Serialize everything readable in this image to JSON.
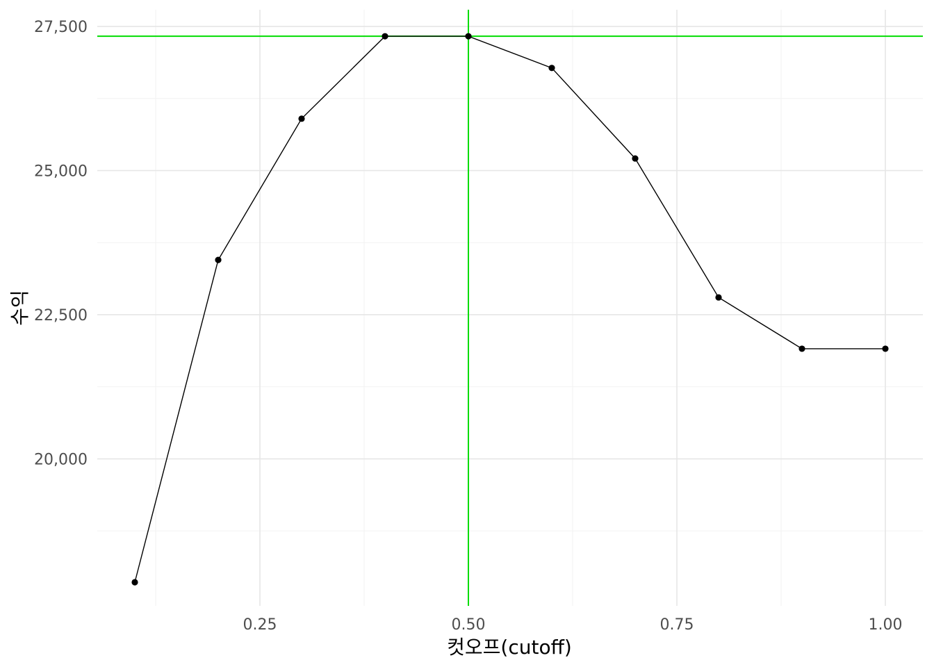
{
  "chart_data": {
    "type": "line",
    "title": "",
    "xlabel": "컷오프(cutoff)",
    "ylabel": "수익",
    "x": [
      0.1,
      0.2,
      0.3,
      0.4,
      0.5,
      0.6,
      0.7,
      0.8,
      0.9,
      1.0
    ],
    "series": [
      {
        "values": [
          17860,
          23450,
          25900,
          27330,
          27330,
          26780,
          25210,
          22800,
          21910,
          21910
        ]
      }
    ],
    "xlim": [
      0.055,
      1.045
    ],
    "ylim": [
      17450,
      27790
    ],
    "x_ticks": [
      {
        "value": 0.25,
        "label": "0.25"
      },
      {
        "value": 0.5,
        "label": "0.50"
      },
      {
        "value": 0.75,
        "label": "0.75"
      },
      {
        "value": 1.0,
        "label": "1.00"
      }
    ],
    "y_ticks": [
      {
        "value": 20000,
        "label": "20,000"
      },
      {
        "value": 22500,
        "label": "22,500"
      },
      {
        "value": 25000,
        "label": "25,000"
      },
      {
        "value": 27500,
        "label": "27,500"
      }
    ],
    "x_minor_ticks": [
      0.125,
      0.375,
      0.625,
      0.875
    ],
    "y_minor_ticks": [
      18750,
      21250,
      23750,
      26250
    ],
    "reference_lines": {
      "vertical_x": 0.5,
      "horizontal_y": 27330,
      "color": "#00dd00"
    },
    "line_color": "#000000",
    "point_color": "#000000",
    "grid": true,
    "legend": "none"
  }
}
